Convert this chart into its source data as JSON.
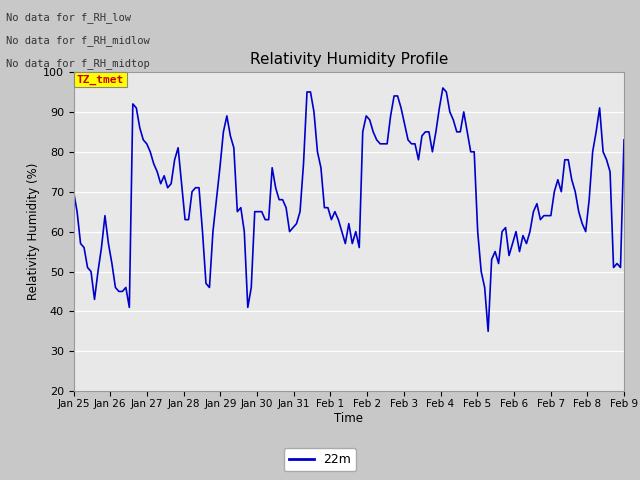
{
  "title": "Relativity Humidity Profile",
  "xlabel": "Time",
  "ylabel": "Relativity Humidity (%)",
  "ylim": [
    20,
    100
  ],
  "yticks": [
    20,
    30,
    40,
    50,
    60,
    70,
    80,
    90,
    100
  ],
  "line_color": "#0000cc",
  "line_width": 1.2,
  "fig_bg_color": "#c8c8c8",
  "plot_bg_color": "#e8e8e8",
  "legend_label": "22m",
  "annotations": [
    "No data for f_RH_low",
    "No data for f_RH_midlow",
    "No data for f_RH_midtop"
  ],
  "annotation_color": "#333333",
  "tz_label": "TZ_tmet",
  "tz_bg": "#ffff00",
  "tz_fg": "#cc0000",
  "x_tick_labels": [
    "Jan 25",
    "Jan 26",
    "Jan 27",
    "Jan 28",
    "Jan 29",
    "Jan 30",
    "Jan 31",
    "Feb 1",
    "Feb 2",
    "Feb 3",
    "Feb 4",
    "Feb 5",
    "Feb 6",
    "Feb 7",
    "Feb 8",
    "Feb 9"
  ],
  "y_values": [
    70,
    65,
    57,
    56,
    51,
    50,
    43,
    50,
    56,
    64,
    57,
    52,
    46,
    45,
    45,
    46,
    41,
    92,
    91,
    86,
    83,
    82,
    80,
    77,
    75,
    72,
    74,
    71,
    72,
    78,
    81,
    72,
    63,
    63,
    70,
    71,
    71,
    60,
    47,
    46,
    60,
    68,
    76,
    85,
    89,
    84,
    81,
    65,
    66,
    60,
    41,
    46,
    65,
    65,
    65,
    63,
    63,
    76,
    71,
    68,
    68,
    66,
    60,
    61,
    62,
    65,
    77,
    95,
    95,
    90,
    80,
    76,
    66,
    66,
    63,
    65,
    63,
    60,
    57,
    62,
    57,
    60,
    56,
    85,
    89,
    88,
    85,
    83,
    82,
    82,
    82,
    89,
    94,
    94,
    91,
    87,
    83,
    82,
    82,
    78,
    84,
    85,
    85,
    80,
    85,
    91,
    96,
    95,
    90,
    88,
    85,
    85,
    90,
    85,
    80,
    80,
    60,
    50,
    46,
    35,
    53,
    55,
    52,
    60,
    61,
    54,
    57,
    60,
    55,
    59,
    57,
    60,
    65,
    67,
    63,
    64,
    64,
    64,
    70,
    73,
    70,
    78,
    78,
    73,
    70,
    65,
    62,
    60,
    68,
    80,
    85,
    91,
    80,
    78,
    75,
    51,
    52,
    51,
    83
  ]
}
